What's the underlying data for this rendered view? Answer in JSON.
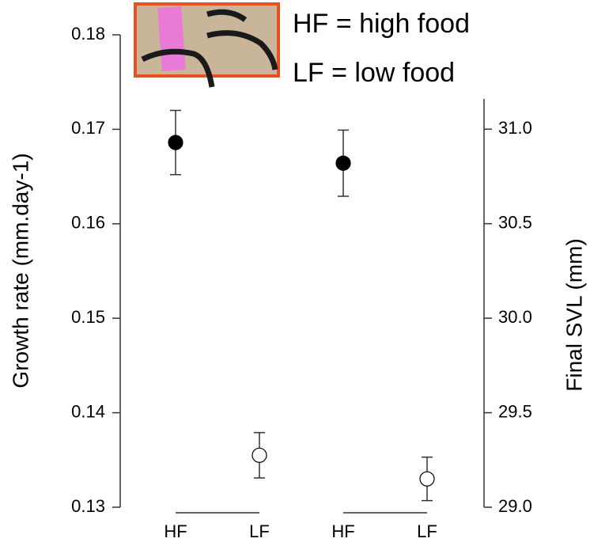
{
  "chart_data": {
    "type": "errorbar",
    "y_label": "Growth rate (mm.day-1)",
    "y2_label": "Final SVL (mm)",
    "annotations": [
      "HF = high food",
      "LF = low food"
    ],
    "categories": [
      "HF",
      "LF",
      "HF",
      "LF"
    ],
    "marker_fills": [
      "#000000",
      "#ffffff",
      "#000000",
      "#ffffff"
    ],
    "series": [
      {
        "axis": "y",
        "color": "#000000",
        "values": [
          0.1686,
          0.1355,
          null,
          null
        ],
        "errors": [
          0.0034,
          0.0024,
          null,
          null
        ]
      },
      {
        "axis": "y2",
        "color": "#000000",
        "values": [
          null,
          null,
          30.82,
          29.15
        ],
        "errors": [
          null,
          null,
          0.175,
          0.115
        ]
      }
    ],
    "ylim": [
      0.13,
      0.18
    ],
    "yticks": [
      0.13,
      0.14,
      0.15,
      0.16,
      0.17,
      0.18
    ],
    "y2lim": [
      29.0,
      31.16
    ],
    "y2ticks": [
      {
        "value": 29,
        "label": "29.0"
      },
      29.5,
      {
        "value": 30,
        "label": "30.0"
      },
      30.5,
      {
        "value": 31,
        "label": "31.0"
      }
    ]
  }
}
